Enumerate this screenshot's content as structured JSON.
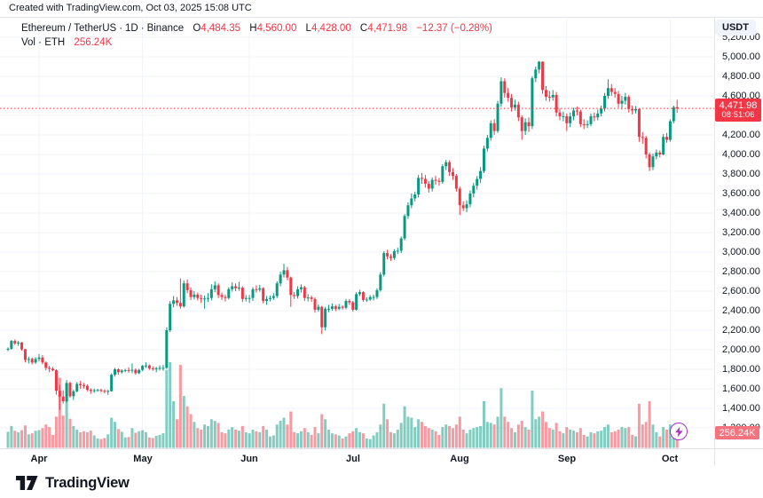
{
  "attribution": "Created with TradingView.com, Oct 03, 2025 15:08 UTC",
  "legend": {
    "symbol": "Ethereum / TetherUS",
    "separator": "·",
    "interval": "1D",
    "exchange": "Binance",
    "open_label": "O",
    "open_value": "4,484.35",
    "high_label": "H",
    "high_value": "4,560.00",
    "low_label": "L",
    "low_value": "4,428.00",
    "close_label": "C",
    "close_value": "4,471.98",
    "change": "−12.37 (−0.28%)",
    "volume_title": "Vol · ETH",
    "volume_value": "256.24K"
  },
  "price_scale": {
    "currency_label": "USDT",
    "ticks": [
      "5,200.00",
      "5,000.00",
      "4,800.00",
      "4,600.00",
      "4,400.00",
      "4,200.00",
      "4,000.00",
      "3,800.00",
      "3,600.00",
      "3,400.00",
      "3,200.00",
      "3,000.00",
      "2,800.00",
      "2,600.00",
      "2,400.00",
      "2,200.00",
      "2,000.00",
      "1,800.00",
      "1,600.00",
      "1,400.00",
      "1,200.00"
    ],
    "current_price_label": "4,471.98",
    "countdown": "08:51:06",
    "volume_axis_label": "256.24K"
  },
  "time_scale": {
    "months": [
      {
        "label": "Apr",
        "day_index": 9
      },
      {
        "label": "May",
        "day_index": 39
      },
      {
        "label": "Jun",
        "day_index": 70
      },
      {
        "label": "Jul",
        "day_index": 100
      },
      {
        "label": "Aug",
        "day_index": 131
      },
      {
        "label": "Sep",
        "day_index": 162
      },
      {
        "label": "Oct",
        "day_index": 192
      }
    ]
  },
  "footer": {
    "brand": "TradingView"
  },
  "colors": {
    "up": "#089981",
    "down": "#F23645",
    "vol_up": "rgba(8,153,129,0.5)",
    "vol_down": "rgba(242,54,69,0.5)",
    "grid": "#F0F3FA",
    "accent_red": "#F23645",
    "vol_tag_bg": "#F4737D",
    "flash_purple": "#A832C8",
    "text": "#131722"
  },
  "chart_data": {
    "type": "candlestick",
    "title": "Ethereum / TetherUS · 1D · Binance",
    "ylabel": "Price (USDT)",
    "y_axis": {
      "min": 1150,
      "max": 5250,
      "tick_step": 200
    },
    "legend_position": "top-left",
    "grid": true,
    "current_price": 4471.98,
    "start_date": "2025-03-23",
    "interval": "1D",
    "columns": [
      "open",
      "high",
      "low",
      "close",
      "volume_kETH"
    ],
    "candles": [
      [
        2005,
        2025,
        1985,
        2010,
        310
      ],
      [
        2010,
        2100,
        2000,
        2090,
        420
      ],
      [
        2090,
        2105,
        2050,
        2065,
        330
      ],
      [
        2065,
        2090,
        2040,
        2075,
        300
      ],
      [
        2075,
        2080,
        1990,
        2005,
        340
      ],
      [
        2005,
        2010,
        1870,
        1895,
        430
      ],
      [
        1895,
        1930,
        1860,
        1905,
        260
      ],
      [
        1905,
        1920,
        1850,
        1870,
        280
      ],
      [
        1870,
        1925,
        1855,
        1905,
        330
      ],
      [
        1905,
        1955,
        1880,
        1920,
        340
      ],
      [
        1920,
        1945,
        1850,
        1870,
        380
      ],
      [
        1870,
        1880,
        1790,
        1815,
        450
      ],
      [
        1815,
        1835,
        1770,
        1805,
        400
      ],
      [
        1805,
        1825,
        1780,
        1790,
        250
      ],
      [
        1790,
        1800,
        1540,
        1580,
        600
      ],
      [
        1580,
        1640,
        1385,
        1520,
        1350
      ],
      [
        1520,
        1585,
        1450,
        1472,
        620
      ],
      [
        1472,
        1690,
        1460,
        1660,
        1200
      ],
      [
        1660,
        1675,
        1510,
        1524,
        560
      ],
      [
        1524,
        1590,
        1485,
        1575,
        420
      ],
      [
        1575,
        1670,
        1565,
        1650,
        350
      ],
      [
        1650,
        1680,
        1600,
        1636,
        300
      ],
      [
        1636,
        1660,
        1605,
        1630,
        320
      ],
      [
        1630,
        1645,
        1575,
        1590,
        300
      ],
      [
        1590,
        1605,
        1550,
        1577,
        330
      ],
      [
        1577,
        1600,
        1560,
        1585,
        240
      ],
      [
        1585,
        1600,
        1570,
        1588,
        180
      ],
      [
        1588,
        1600,
        1565,
        1580,
        170
      ],
      [
        1580,
        1595,
        1555,
        1572,
        190
      ],
      [
        1572,
        1590,
        1537,
        1577,
        260
      ],
      [
        1577,
        1760,
        1570,
        1745,
        580
      ],
      [
        1745,
        1815,
        1725,
        1800,
        500
      ],
      [
        1800,
        1810,
        1745,
        1770,
        360
      ],
      [
        1770,
        1800,
        1755,
        1786,
        310
      ],
      [
        1786,
        1805,
        1770,
        1792,
        200
      ],
      [
        1792,
        1820,
        1765,
        1790,
        210
      ],
      [
        1790,
        1860,
        1760,
        1795,
        380
      ],
      [
        1795,
        1810,
        1745,
        1760,
        290
      ],
      [
        1760,
        1805,
        1750,
        1793,
        320
      ],
      [
        1793,
        1845,
        1780,
        1835,
        340
      ],
      [
        1835,
        1870,
        1815,
        1840,
        300
      ],
      [
        1840,
        1850,
        1795,
        1810,
        200
      ],
      [
        1810,
        1830,
        1785,
        1805,
        190
      ],
      [
        1805,
        1825,
        1770,
        1810,
        230
      ],
      [
        1810,
        1840,
        1790,
        1815,
        250
      ],
      [
        1815,
        1845,
        1785,
        1815,
        280
      ],
      [
        1815,
        2230,
        1805,
        2200,
        1500
      ],
      [
        2200,
        2500,
        2180,
        2470,
        1650
      ],
      [
        2470,
        2550,
        2435,
        2505,
        900
      ],
      [
        2505,
        2540,
        2450,
        2480,
        550
      ],
      [
        2480,
        2730,
        2420,
        2445,
        1600
      ],
      [
        2445,
        2710,
        2430,
        2680,
        1000
      ],
      [
        2680,
        2720,
        2580,
        2610,
        800
      ],
      [
        2610,
        2640,
        2510,
        2540,
        650
      ],
      [
        2540,
        2600,
        2515,
        2565,
        500
      ],
      [
        2565,
        2585,
        2505,
        2530,
        380
      ],
      [
        2530,
        2565,
        2480,
        2520,
        350
      ],
      [
        2520,
        2555,
        2420,
        2525,
        450
      ],
      [
        2525,
        2580,
        2490,
        2530,
        420
      ],
      [
        2530,
        2670,
        2505,
        2620,
        550
      ],
      [
        2620,
        2700,
        2590,
        2660,
        520
      ],
      [
        2660,
        2680,
        2530,
        2560,
        480
      ],
      [
        2560,
        2585,
        2510,
        2540,
        300
      ],
      [
        2540,
        2565,
        2495,
        2530,
        280
      ],
      [
        2530,
        2640,
        2515,
        2620,
        350
      ],
      [
        2620,
        2690,
        2595,
        2650,
        400
      ],
      [
        2650,
        2680,
        2600,
        2630,
        350
      ],
      [
        2630,
        2695,
        2605,
        2635,
        330
      ],
      [
        2635,
        2650,
        2490,
        2520,
        420
      ],
      [
        2520,
        2560,
        2495,
        2530,
        300
      ],
      [
        2530,
        2560,
        2480,
        2530,
        280
      ],
      [
        2530,
        2640,
        2500,
        2620,
        350
      ],
      [
        2620,
        2660,
        2585,
        2615,
        320
      ],
      [
        2615,
        2665,
        2595,
        2630,
        300
      ],
      [
        2630,
        2640,
        2475,
        2500,
        420
      ],
      [
        2500,
        2550,
        2460,
        2520,
        350
      ],
      [
        2520,
        2555,
        2495,
        2530,
        220
      ],
      [
        2530,
        2580,
        2510,
        2550,
        240
      ],
      [
        2550,
        2700,
        2530,
        2680,
        450
      ],
      [
        2680,
        2800,
        2650,
        2770,
        520
      ],
      [
        2770,
        2880,
        2740,
        2815,
        580
      ],
      [
        2815,
        2850,
        2710,
        2740,
        450
      ],
      [
        2740,
        2750,
        2440,
        2560,
        700
      ],
      [
        2560,
        2590,
        2520,
        2550,
        300
      ],
      [
        2550,
        2650,
        2525,
        2620,
        280
      ],
      [
        2620,
        2670,
        2585,
        2640,
        320
      ],
      [
        2640,
        2655,
        2500,
        2530,
        380
      ],
      [
        2530,
        2570,
        2495,
        2535,
        300
      ],
      [
        2535,
        2555,
        2490,
        2520,
        250
      ],
      [
        2520,
        2535,
        2380,
        2410,
        400
      ],
      [
        2410,
        2465,
        2390,
        2440,
        280
      ],
      [
        2440,
        2450,
        2160,
        2230,
        650
      ],
      [
        2230,
        2440,
        2195,
        2420,
        550
      ],
      [
        2420,
        2460,
        2385,
        2420,
        350
      ],
      [
        2420,
        2475,
        2400,
        2445,
        280
      ],
      [
        2445,
        2460,
        2395,
        2420,
        260
      ],
      [
        2420,
        2470,
        2405,
        2440,
        240
      ],
      [
        2440,
        2455,
        2410,
        2430,
        180
      ],
      [
        2430,
        2520,
        2415,
        2500,
        220
      ],
      [
        2500,
        2520,
        2460,
        2485,
        280
      ],
      [
        2485,
        2500,
        2390,
        2410,
        320
      ],
      [
        2410,
        2590,
        2400,
        2570,
        380
      ],
      [
        2570,
        2615,
        2550,
        2590,
        300
      ],
      [
        2590,
        2600,
        2490,
        2510,
        280
      ],
      [
        2510,
        2540,
        2490,
        2515,
        180
      ],
      [
        2515,
        2560,
        2500,
        2540,
        170
      ],
      [
        2540,
        2565,
        2505,
        2540,
        240
      ],
      [
        2540,
        2630,
        2520,
        2610,
        300
      ],
      [
        2610,
        2795,
        2595,
        2770,
        450
      ],
      [
        2770,
        3010,
        2750,
        2990,
        850
      ],
      [
        2990,
        3025,
        2925,
        2955,
        550
      ],
      [
        2955,
        2980,
        2910,
        2940,
        300
      ],
      [
        2940,
        3030,
        2920,
        3010,
        280
      ],
      [
        3010,
        3045,
        2980,
        3015,
        350
      ],
      [
        3015,
        3160,
        2990,
        3140,
        480
      ],
      [
        3140,
        3390,
        3120,
        3370,
        800
      ],
      [
        3370,
        3510,
        3340,
        3480,
        600
      ],
      [
        3480,
        3600,
        3450,
        3550,
        580
      ],
      [
        3550,
        3620,
        3520,
        3590,
        400
      ],
      [
        3590,
        3790,
        3560,
        3760,
        550
      ],
      [
        3760,
        3810,
        3700,
        3750,
        500
      ],
      [
        3750,
        3790,
        3660,
        3700,
        420
      ],
      [
        3700,
        3730,
        3610,
        3650,
        380
      ],
      [
        3650,
        3765,
        3620,
        3740,
        350
      ],
      [
        3740,
        3780,
        3690,
        3730,
        320
      ],
      [
        3730,
        3760,
        3680,
        3720,
        250
      ],
      [
        3720,
        3900,
        3700,
        3880,
        400
      ],
      [
        3880,
        3945,
        3840,
        3920,
        450
      ],
      [
        3920,
        3940,
        3780,
        3820,
        420
      ],
      [
        3820,
        3860,
        3740,
        3780,
        380
      ],
      [
        3780,
        3800,
        3620,
        3650,
        450
      ],
      [
        3650,
        3670,
        3380,
        3480,
        600
      ],
      [
        3480,
        3520,
        3420,
        3450,
        350
      ],
      [
        3450,
        3530,
        3410,
        3490,
        280
      ],
      [
        3490,
        3630,
        3460,
        3600,
        350
      ],
      [
        3600,
        3710,
        3560,
        3680,
        380
      ],
      [
        3680,
        3780,
        3640,
        3750,
        400
      ],
      [
        3750,
        3870,
        3710,
        3830,
        420
      ],
      [
        3830,
        4090,
        3810,
        4060,
        900
      ],
      [
        4060,
        4200,
        4030,
        4170,
        500
      ],
      [
        4170,
        4350,
        4140,
        4320,
        480
      ],
      [
        4320,
        4360,
        4200,
        4240,
        450
      ],
      [
        4240,
        4550,
        4220,
        4520,
        600
      ],
      [
        4520,
        4790,
        4490,
        4750,
        1150
      ],
      [
        4750,
        4780,
        4580,
        4630,
        600
      ],
      [
        4630,
        4680,
        4540,
        4580,
        500
      ],
      [
        4580,
        4620,
        4440,
        4480,
        380
      ],
      [
        4480,
        4560,
        4450,
        4510,
        300
      ],
      [
        4510,
        4540,
        4340,
        4380,
        450
      ],
      [
        4380,
        4400,
        4150,
        4240,
        520
      ],
      [
        4240,
        4370,
        4200,
        4330,
        400
      ],
      [
        4330,
        4380,
        4230,
        4290,
        350
      ],
      [
        4290,
        4800,
        4260,
        4780,
        1100
      ],
      [
        4780,
        4900,
        4740,
        4870,
        550
      ],
      [
        4870,
        4956,
        4830,
        4950,
        600
      ],
      [
        4950,
        4955,
        4620,
        4660,
        700
      ],
      [
        4660,
        4700,
        4550,
        4590,
        500
      ],
      [
        4590,
        4650,
        4540,
        4585,
        380
      ],
      [
        4585,
        4660,
        4550,
        4610,
        350
      ],
      [
        4610,
        4640,
        4390,
        4430,
        480
      ],
      [
        4430,
        4470,
        4350,
        4390,
        320
      ],
      [
        4390,
        4440,
        4340,
        4392,
        280
      ],
      [
        4392,
        4420,
        4240,
        4320,
        400
      ],
      [
        4320,
        4430,
        4280,
        4390,
        350
      ],
      [
        4390,
        4480,
        4350,
        4450,
        330
      ],
      [
        4450,
        4490,
        4400,
        4440,
        300
      ],
      [
        4440,
        4460,
        4280,
        4310,
        380
      ],
      [
        4310,
        4360,
        4260,
        4300,
        250
      ],
      [
        4300,
        4350,
        4270,
        4310,
        220
      ],
      [
        4310,
        4420,
        4290,
        4390,
        300
      ],
      [
        4390,
        4430,
        4340,
        4380,
        280
      ],
      [
        4380,
        4460,
        4350,
        4420,
        320
      ],
      [
        4420,
        4500,
        4390,
        4470,
        330
      ],
      [
        4470,
        4630,
        4440,
        4600,
        400
      ],
      [
        4600,
        4770,
        4570,
        4680,
        450
      ],
      [
        4680,
        4720,
        4600,
        4640,
        300
      ],
      [
        4640,
        4680,
        4580,
        4620,
        320
      ],
      [
        4620,
        4650,
        4480,
        4520,
        350
      ],
      [
        4520,
        4600,
        4460,
        4550,
        400
      ],
      [
        4550,
        4630,
        4510,
        4590,
        380
      ],
      [
        4590,
        4610,
        4430,
        4465,
        400
      ],
      [
        4465,
        4500,
        4410,
        4450,
        250
      ],
      [
        4450,
        4495,
        4420,
        4465,
        220
      ],
      [
        4465,
        4470,
        4130,
        4180,
        850
      ],
      [
        4180,
        4230,
        4110,
        4170,
        450
      ],
      [
        4170,
        4190,
        3960,
        4000,
        500
      ],
      [
        4000,
        4020,
        3830,
        3870,
        900
      ],
      [
        3870,
        4010,
        3840,
        3980,
        450
      ],
      [
        3980,
        4050,
        3950,
        4020,
        300
      ],
      [
        4020,
        4040,
        3970,
        4000,
        220
      ],
      [
        4000,
        4210,
        3990,
        4180,
        400
      ],
      [
        4180,
        4220,
        4120,
        4150,
        350
      ],
      [
        4150,
        4360,
        4130,
        4340,
        450
      ],
      [
        4340,
        4500,
        4320,
        4484.35,
        420
      ],
      [
        4484.35,
        4560,
        4428,
        4471.98,
        256.24
      ]
    ]
  }
}
